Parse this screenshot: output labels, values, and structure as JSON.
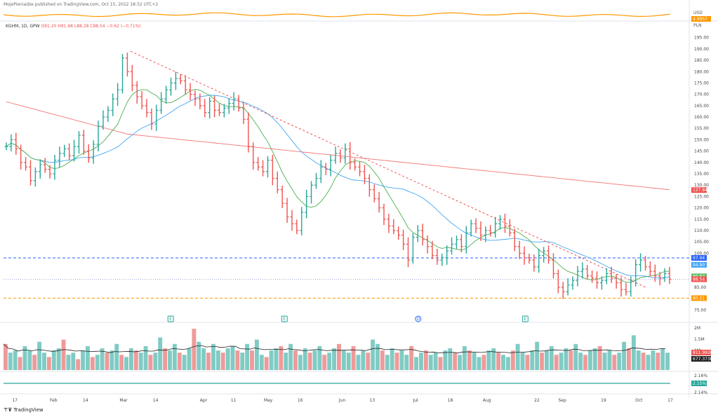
{
  "header": {
    "published": "MojePieniadze published on TradingView.com, Oct 15, 2022 18:32 UTC+2"
  },
  "legend": {
    "symbol": "KGHM, 1D, GPW",
    "open": "O91.20",
    "high": "H91.68",
    "low": "L88.28",
    "close": "C88.54",
    "change": "−0.62 (−0.71%)"
  },
  "footer": {
    "brand": "TradingView"
  },
  "chart_data": {
    "type": "ohlc",
    "title": "KGHM, 1D, GPW",
    "currency": "PLN",
    "ylim": [
      72,
      198
    ],
    "yticks": [
      75,
      80,
      85,
      90,
      95,
      100,
      105,
      110,
      115,
      120,
      125,
      130,
      135,
      140,
      145,
      150,
      155,
      160,
      165,
      170,
      175,
      180,
      185,
      190,
      195
    ],
    "xtick_labels": [
      "17",
      "Feb",
      "14",
      "Mar",
      "14",
      "Apr",
      "11",
      "May",
      "16",
      "Jun",
      "13",
      "Jul",
      "18",
      "Aug",
      "22",
      "Sep",
      "19",
      "Oct",
      "17"
    ],
    "close_path": [
      147,
      150,
      146,
      140,
      138,
      132,
      136,
      139,
      137,
      135,
      141,
      144,
      146,
      143,
      147,
      152,
      145,
      142,
      148,
      156,
      160,
      163,
      168,
      172,
      186,
      180,
      174,
      169,
      165,
      162,
      157,
      163,
      168,
      172,
      175,
      177,
      176,
      172,
      170,
      168,
      165,
      162,
      167,
      163,
      162,
      164,
      166,
      168,
      164,
      159,
      147,
      140,
      138,
      136,
      141,
      133,
      128,
      122,
      116,
      113,
      110,
      118,
      125,
      130,
      133,
      138,
      137,
      141,
      144,
      142,
      146,
      140,
      138,
      136,
      133,
      128,
      124,
      120,
      115,
      112,
      110,
      108,
      104,
      97,
      107,
      110,
      106,
      103,
      99,
      97,
      98,
      101,
      104,
      106,
      103,
      109,
      113,
      111,
      108,
      110,
      109,
      113,
      115,
      112,
      109,
      103,
      100,
      98,
      97,
      94,
      99,
      101,
      97,
      91,
      85,
      83,
      86,
      88,
      92,
      93,
      90,
      89,
      87,
      88,
      91,
      89,
      87,
      84,
      83,
      88,
      95,
      97,
      94,
      92,
      90,
      89,
      91,
      88.54
    ],
    "overlays": [
      {
        "name": "SMA 20",
        "color": "#4caf50",
        "last": 89.82
      },
      {
        "name": "SMA 50",
        "color": "#42a5f5",
        "last": 94.9
      },
      {
        "name": "SMA 200",
        "color": "#ef5350",
        "last": 127.84
      }
    ],
    "trendline": {
      "from": {
        "x": 0.19,
        "price": 189
      },
      "to": {
        "x": 0.96,
        "price": 85
      },
      "style": "dashed"
    },
    "price_labels": [
      {
        "value": "127.84",
        "color": "#ef5350"
      },
      {
        "value": "97.94",
        "color": "#2962ff"
      },
      {
        "value": "94.90",
        "color": "#42a5f5"
      },
      {
        "value": "89.82",
        "color": "#66bb6a"
      },
      {
        "value": "88.54",
        "color": "#ef5350"
      },
      {
        "value": "80.21",
        "color": "#ff9800"
      }
    ],
    "horizontal_lines": [
      {
        "price": 97.94,
        "color": "#2962ff",
        "style": "dashed"
      },
      {
        "price": 80.21,
        "color": "#ff9800",
        "style": "dashed"
      },
      {
        "price": 88.54,
        "color": "#9fa8da",
        "style": "dotted"
      }
    ],
    "earnings_markers": [
      "E",
      "E",
      "D",
      "E"
    ],
    "top_pane": {
      "labels": [
        "USD"
      ],
      "tag": "4.9957"
    },
    "volume": {
      "ticks": [
        "2M",
        "1.5M",
        "1M"
      ],
      "labels": [
        {
          "value": "811.992K",
          "color": "#ef5350"
        },
        {
          "value": "677.373K",
          "color": "#222222"
        }
      ],
      "bars": [
        1.2,
        0.8,
        0.9,
        0.6,
        1.1,
        0.9,
        0.7,
        1.3,
        0.8,
        0.6,
        0.9,
        1.0,
        1.4,
        0.7,
        0.8,
        0.5,
        0.9,
        1.1,
        0.6,
        0.7,
        1.0,
        0.8,
        0.9,
        1.2,
        0.7,
        0.6,
        1.0,
        0.9,
        0.8,
        1.1,
        0.7,
        0.8,
        1.5,
        1.0,
        0.9,
        1.2,
        0.8,
        0.7,
        1.0,
        1.9,
        1.3,
        1.0,
        0.8,
        1.2,
        0.9,
        0.8,
        1.0,
        1.1,
        0.9,
        0.8,
        1.2,
        0.9,
        1.4,
        0.7,
        0.6,
        0.9,
        1.0,
        1.1,
        0.8,
        1.2,
        0.9,
        0.7,
        1.0,
        0.8,
        0.9,
        1.1,
        0.7,
        0.8,
        1.0,
        1.2,
        0.9,
        0.8,
        1.1,
        0.7,
        0.9,
        0.8,
        1.4,
        1.2,
        0.9,
        0.7,
        1.0,
        0.8,
        0.9,
        0.7,
        1.1,
        0.6,
        0.8,
        0.9,
        0.7,
        0.8,
        0.6,
        0.9,
        1.0,
        0.8,
        0.7,
        1.1,
        0.9,
        0.8,
        0.6,
        0.7,
        0.9,
        1.0,
        0.8,
        0.7,
        0.6,
        0.9,
        1.2,
        0.8,
        0.7,
        0.9,
        1.3,
        0.8,
        0.9,
        1.1,
        0.7,
        0.8,
        1.0,
        0.9,
        1.2,
        0.8,
        0.7,
        0.9,
        1.0,
        1.1,
        0.8,
        0.9,
        0.7,
        0.8,
        1.3,
        1.0,
        1.6,
        0.9,
        0.8,
        0.7,
        0.9,
        0.8,
        1.0,
        0.8
      ]
    },
    "indicator_pane": {
      "ticks": [
        "2.16%",
        "2.14%"
      ],
      "label": "2.15%",
      "color": "#26a69a"
    }
  }
}
